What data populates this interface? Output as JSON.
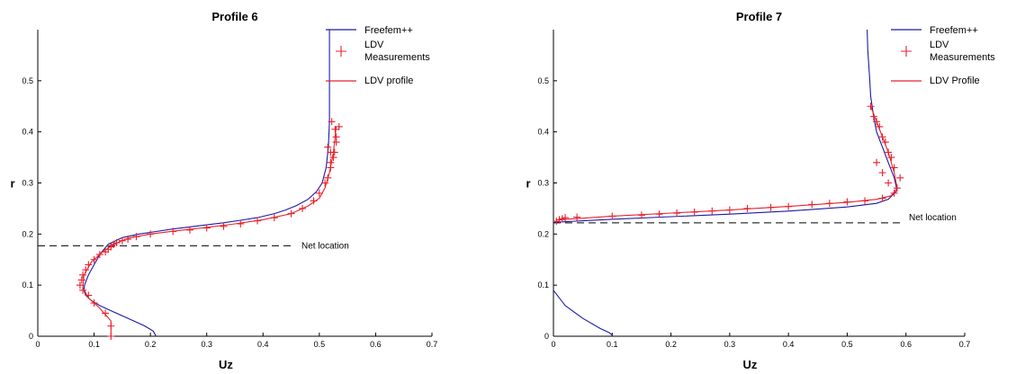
{
  "chart_data": [
    {
      "type": "line",
      "title": "Profile 6",
      "xlabel": "Uz",
      "ylabel": "r",
      "xlim": [
        0,
        0.7
      ],
      "ylim": [
        0,
        0.6
      ],
      "x_ticks": [
        "0",
        "0.1",
        "0.2",
        "0.3",
        "0.4",
        "0.5",
        "0.6",
        "0.7"
      ],
      "y_ticks": [
        "0",
        "0.1",
        "0.2",
        "0.3",
        "0.4",
        "0.5"
      ],
      "legend": {
        "position": "top-right",
        "entries": [
          {
            "label": "Freefem++",
            "color": "#1a1aa6",
            "marker": "line"
          },
          {
            "label": "LDV",
            "label2": "Measurements",
            "color": "#e8212b",
            "marker": "plus"
          },
          {
            "label": "LDV profile",
            "color": "#e8212b",
            "marker": "line"
          }
        ]
      },
      "annotation": {
        "text": "Net location",
        "y": 0.177
      },
      "series": [
        {
          "color": "#1a1aa6",
          "style": "line",
          "x": [
            0.21,
            0.205,
            0.19,
            0.17,
            0.15,
            0.13,
            0.11,
            0.095,
            0.085,
            0.082,
            0.083,
            0.09,
            0.1,
            0.11,
            0.125,
            0.15,
            0.18,
            0.21,
            0.24,
            0.27,
            0.3,
            0.33,
            0.36,
            0.39,
            0.42,
            0.44,
            0.46,
            0.48,
            0.495,
            0.505,
            0.512,
            0.516,
            0.518,
            0.518,
            0.518,
            0.518,
            0.518
          ],
          "y": [
            0.0,
            0.01,
            0.02,
            0.03,
            0.04,
            0.05,
            0.06,
            0.07,
            0.08,
            0.09,
            0.1,
            0.12,
            0.14,
            0.16,
            0.18,
            0.193,
            0.2,
            0.205,
            0.21,
            0.214,
            0.218,
            0.222,
            0.227,
            0.232,
            0.24,
            0.247,
            0.256,
            0.268,
            0.283,
            0.3,
            0.33,
            0.37,
            0.42,
            0.48,
            0.52,
            0.56,
            0.6
          ]
        },
        {
          "color": "#e8212b",
          "style": "plus",
          "x": [
            0.13,
            0.13,
            0.12,
            0.1,
            0.09,
            0.08,
            0.075,
            0.078,
            0.08,
            0.085,
            0.09,
            0.1,
            0.11,
            0.12,
            0.125,
            0.13,
            0.135,
            0.14,
            0.15,
            0.16,
            0.175,
            0.2,
            0.24,
            0.27,
            0.3,
            0.33,
            0.36,
            0.39,
            0.42,
            0.45,
            0.47,
            0.49,
            0.5,
            0.51,
            0.515,
            0.52,
            0.525,
            0.527,
            0.53,
            0.53,
            0.535,
            0.528,
            0.522,
            0.52,
            0.52,
            0.515
          ],
          "y": [
            0.0,
            0.02,
            0.045,
            0.065,
            0.08,
            0.09,
            0.1,
            0.11,
            0.12,
            0.13,
            0.14,
            0.15,
            0.16,
            0.165,
            0.17,
            0.175,
            0.18,
            0.183,
            0.187,
            0.19,
            0.195,
            0.2,
            0.205,
            0.208,
            0.212,
            0.215,
            0.22,
            0.226,
            0.232,
            0.24,
            0.25,
            0.265,
            0.28,
            0.3,
            0.31,
            0.33,
            0.35,
            0.36,
            0.38,
            0.39,
            0.41,
            0.405,
            0.42,
            0.34,
            0.36,
            0.37
          ]
        },
        {
          "color": "#e8212b",
          "style": "line",
          "x": [
            0.13,
            0.13,
            0.11,
            0.09,
            0.08,
            0.082,
            0.095,
            0.115,
            0.135,
            0.16,
            0.2,
            0.25,
            0.3,
            0.35,
            0.4,
            0.45,
            0.48,
            0.5,
            0.51,
            0.518,
            0.525,
            0.53
          ],
          "y": [
            0.0,
            0.03,
            0.055,
            0.075,
            0.095,
            0.12,
            0.145,
            0.165,
            0.18,
            0.192,
            0.2,
            0.207,
            0.213,
            0.22,
            0.228,
            0.24,
            0.255,
            0.27,
            0.29,
            0.32,
            0.36,
            0.41
          ]
        }
      ]
    },
    {
      "type": "line",
      "title": "Profile 7",
      "xlabel": "Uz",
      "ylabel": "r",
      "xlim": [
        0,
        0.7
      ],
      "ylim": [
        0,
        0.6
      ],
      "x_ticks": [
        "0",
        "0.1",
        "0.2",
        "0.3",
        "0.4",
        "0.5",
        "0.6",
        "0.7"
      ],
      "y_ticks": [
        "0",
        "0.1",
        "0.2",
        "0.3",
        "0.4",
        "0.5"
      ],
      "legend": {
        "position": "top-right",
        "entries": [
          {
            "label": "Freefem++",
            "color": "#1a1aa6",
            "marker": "line"
          },
          {
            "label": "LDV",
            "label2": "Measurements",
            "color": "#e8212b",
            "marker": "plus"
          },
          {
            "label": "LDV Profile",
            "color": "#e8212b",
            "marker": "line"
          }
        ]
      },
      "annotation": {
        "text": "Net location",
        "y": 0.222
      },
      "series": [
        {
          "color": "#1a1aa6",
          "style": "line",
          "x": [
            0.0,
            0.02,
            0.05,
            0.08,
            0.095,
            0.1,
            0.1
          ],
          "y": [
            0.09,
            0.06,
            0.035,
            0.015,
            0.007,
            0.002,
            0.0
          ]
        },
        {
          "color": "#1a1aa6",
          "style": "line",
          "x": [
            0.0,
            0.05,
            0.1,
            0.2,
            0.3,
            0.4,
            0.5,
            0.55,
            0.57,
            0.585,
            0.58,
            0.57,
            0.56,
            0.55,
            0.545,
            0.54,
            0.538,
            0.535,
            0.534
          ],
          "y": [
            0.223,
            0.226,
            0.229,
            0.234,
            0.239,
            0.245,
            0.253,
            0.26,
            0.268,
            0.285,
            0.31,
            0.34,
            0.37,
            0.4,
            0.43,
            0.47,
            0.51,
            0.56,
            0.6
          ]
        },
        {
          "color": "#e8212b",
          "style": "plus",
          "x": [
            0.005,
            0.01,
            0.015,
            0.02,
            0.04,
            0.1,
            0.15,
            0.18,
            0.21,
            0.24,
            0.27,
            0.3,
            0.33,
            0.37,
            0.4,
            0.44,
            0.47,
            0.5,
            0.53,
            0.56,
            0.58,
            0.585,
            0.59,
            0.58,
            0.575,
            0.57,
            0.565,
            0.56,
            0.555,
            0.55,
            0.545,
            0.54,
            0.57,
            0.56,
            0.55
          ],
          "y": [
            0.225,
            0.228,
            0.23,
            0.232,
            0.233,
            0.235,
            0.237,
            0.239,
            0.241,
            0.243,
            0.245,
            0.247,
            0.25,
            0.252,
            0.254,
            0.258,
            0.26,
            0.263,
            0.265,
            0.27,
            0.28,
            0.29,
            0.31,
            0.33,
            0.35,
            0.36,
            0.38,
            0.39,
            0.41,
            0.42,
            0.43,
            0.45,
            0.3,
            0.32,
            0.34
          ]
        },
        {
          "color": "#e8212b",
          "style": "line",
          "x": [
            0.01,
            0.05,
            0.1,
            0.2,
            0.3,
            0.4,
            0.5,
            0.55,
            0.575,
            0.585,
            0.58,
            0.57,
            0.56,
            0.55,
            0.54
          ],
          "y": [
            0.228,
            0.231,
            0.235,
            0.241,
            0.247,
            0.254,
            0.262,
            0.268,
            0.275,
            0.29,
            0.32,
            0.36,
            0.39,
            0.42,
            0.45
          ]
        }
      ]
    }
  ]
}
